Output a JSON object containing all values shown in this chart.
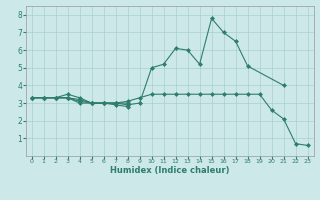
{
  "xlabel": "Humidex (Indice chaleur)",
  "background_color": "#cce8e8",
  "line_color": "#2e7d6e",
  "xlim": [
    -0.5,
    23.5
  ],
  "ylim": [
    0,
    8.5
  ],
  "xticks": [
    0,
    1,
    2,
    3,
    4,
    5,
    6,
    7,
    8,
    9,
    10,
    11,
    12,
    13,
    14,
    15,
    16,
    17,
    18,
    19,
    20,
    21,
    22,
    23
  ],
  "yticks": [
    1,
    2,
    3,
    4,
    5,
    6,
    7,
    8
  ],
  "lines": [
    {
      "x": [
        0,
        1,
        2,
        3,
        4,
        5,
        6,
        7,
        8,
        9,
        10,
        11,
        12,
        13,
        14,
        15,
        16,
        17,
        18,
        21
      ],
      "y": [
        3.3,
        3.3,
        3.3,
        3.5,
        3.3,
        3.0,
        3.0,
        3.0,
        2.9,
        3.0,
        5.0,
        5.2,
        6.1,
        6.0,
        5.2,
        7.8,
        7.0,
        6.5,
        5.1,
        4.0
      ]
    },
    {
      "x": [
        0,
        1,
        2,
        3,
        4,
        5,
        6,
        7,
        8,
        9,
        10,
        11,
        12,
        13,
        14,
        15,
        16,
        17,
        18,
        19,
        20,
        21,
        22,
        23
      ],
      "y": [
        3.3,
        3.3,
        3.3,
        3.3,
        3.0,
        3.0,
        3.0,
        3.0,
        3.1,
        3.3,
        3.5,
        3.5,
        3.5,
        3.5,
        3.5,
        3.5,
        3.5,
        3.5,
        3.5,
        3.5,
        2.6,
        2.1,
        0.7,
        0.6
      ]
    },
    {
      "x": [
        0,
        1,
        2,
        3,
        4,
        5,
        6,
        7,
        8
      ],
      "y": [
        3.3,
        3.3,
        3.3,
        3.3,
        3.1,
        3.0,
        3.0,
        2.9,
        2.8
      ]
    },
    {
      "x": [
        0,
        1,
        2,
        3,
        4,
        5,
        6,
        7,
        8
      ],
      "y": [
        3.3,
        3.3,
        3.3,
        3.3,
        3.2,
        3.0,
        3.0,
        3.0,
        3.0
      ]
    }
  ]
}
